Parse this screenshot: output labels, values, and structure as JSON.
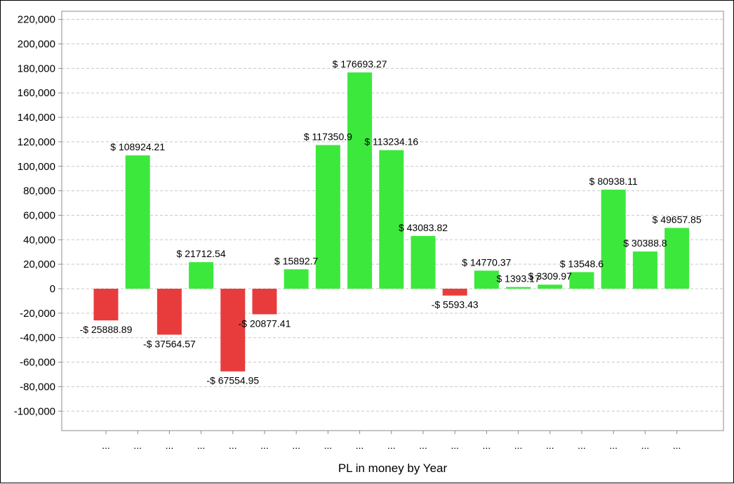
{
  "chart_data": {
    "type": "bar",
    "title": "",
    "xlabel": "PL in money by Year",
    "ylabel": "",
    "ylim": [
      -120000,
      230000
    ],
    "yticks": [
      220000,
      200000,
      180000,
      160000,
      140000,
      120000,
      100000,
      80000,
      60000,
      40000,
      20000,
      0,
      -20000,
      -40000,
      -60000,
      -80000,
      -100000
    ],
    "ytick_labels": [
      "220,000",
      "200,000",
      "180,000",
      "160,000",
      "140,000",
      "120,000",
      "100,000",
      "80,000",
      "60,000",
      "40,000",
      "20,000",
      "0",
      "-20,000",
      "-40,000",
      "-60,000",
      "-80,000",
      "-100,000"
    ],
    "grid": true,
    "categories": [
      "...",
      "...",
      "...",
      "...",
      "...",
      "...",
      "...",
      "...",
      "...",
      "...",
      "...",
      "...",
      "...",
      "...",
      "...",
      "...",
      "...",
      "...",
      "..."
    ],
    "values": [
      -25888.89,
      108924.21,
      -37564.57,
      21712.54,
      -67554.95,
      -20877.41,
      15892.7,
      117350.9,
      176693.27,
      113234.16,
      43083.82,
      -5593.43,
      14770.37,
      1393.17,
      3309.97,
      13548.6,
      80938.11,
      30388.8,
      49657.85
    ],
    "value_labels": [
      "-$ 25888.89",
      "$ 108924.21",
      "-$ 37564.57",
      "$ 21712.54",
      "-$ 67554.95",
      "-$ 20877.41",
      "$ 15892.7",
      "$ 117350.9",
      "$ 176693.27",
      "$ 113234.16",
      "$ 43083.82",
      "-$ 5593.43",
      "$ 14770.37",
      "$ 1393.17",
      "$ 3309.97",
      "$ 13548.6",
      "$ 80938.11",
      "$ 30388.8",
      "$ 49657.85"
    ],
    "colors": {
      "positive": "#3de83d",
      "negative": "#e83c3c",
      "grid": "#c8c8c8",
      "axis": "#8c8c8c"
    }
  }
}
